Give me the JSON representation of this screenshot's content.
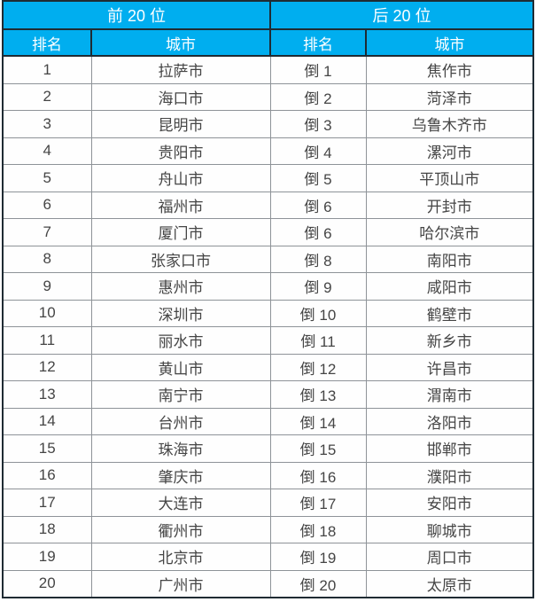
{
  "chart_data": {
    "type": "table",
    "title": "",
    "header_groups": [
      {
        "label": "前 20 位"
      },
      {
        "label": "后 20 位"
      }
    ],
    "columns": [
      "排名",
      "城市",
      "排名",
      "城市"
    ],
    "rows": [
      [
        "1",
        "拉萨市",
        "倒 1",
        "焦作市"
      ],
      [
        "2",
        "海口市",
        "倒 2",
        "菏泽市"
      ],
      [
        "3",
        "昆明市",
        "倒 3",
        "乌鲁木齐市"
      ],
      [
        "4",
        "贵阳市",
        "倒 4",
        "漯河市"
      ],
      [
        "5",
        "舟山市",
        "倒 5",
        "平顶山市"
      ],
      [
        "6",
        "福州市",
        "倒 6",
        "开封市"
      ],
      [
        "7",
        "厦门市",
        "倒 6",
        "哈尔滨市"
      ],
      [
        "8",
        "张家口市",
        "倒 8",
        "南阳市"
      ],
      [
        "9",
        "惠州市",
        "倒 9",
        "咸阳市"
      ],
      [
        "10",
        "深圳市",
        "倒 10",
        "鹤壁市"
      ],
      [
        "11",
        "丽水市",
        "倒 11",
        "新乡市"
      ],
      [
        "12",
        "黄山市",
        "倒 12",
        "许昌市"
      ],
      [
        "13",
        "南宁市",
        "倒 13",
        "渭南市"
      ],
      [
        "14",
        "台州市",
        "倒 14",
        "洛阳市"
      ],
      [
        "15",
        "珠海市",
        "倒 15",
        "邯郸市"
      ],
      [
        "16",
        "肇庆市",
        "倒 16",
        "濮阳市"
      ],
      [
        "17",
        "大连市",
        "倒 17",
        "安阳市"
      ],
      [
        "18",
        "衢州市",
        "倒 18",
        "聊城市"
      ],
      [
        "19",
        "北京市",
        "倒 19",
        "周口市"
      ],
      [
        "20",
        "广州市",
        "倒 20",
        "太原市"
      ]
    ],
    "layout_hints": {
      "grid": true,
      "header_background": "#00aeef",
      "header_text_color": "#ffffff",
      "body_text_color": "#454545",
      "dark_border_color": "#1f2b33",
      "light_border_color": "#8e9398"
    }
  }
}
